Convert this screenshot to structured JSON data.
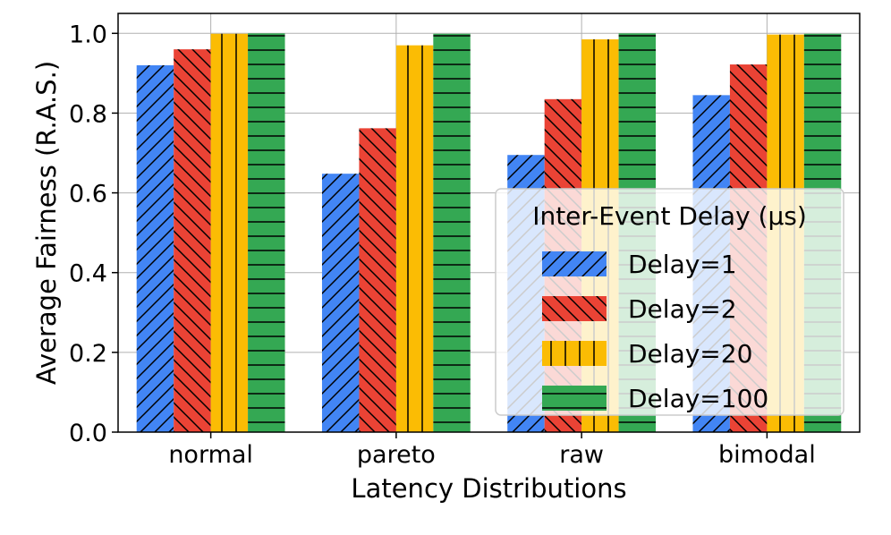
{
  "chart_data": {
    "type": "bar",
    "xlabel": "Latency Distributions",
    "ylabel": "Average Fairness (R.A.S.)",
    "ylim": [
      0,
      1.05
    ],
    "yticks": [
      "0.0",
      "0.2",
      "0.4",
      "0.6",
      "0.8",
      "1.0"
    ],
    "grid": true,
    "categories": [
      "normal",
      "pareto",
      "raw",
      "bimodal"
    ],
    "legend": {
      "title": "Inter-Event Delay (μs)",
      "placement": "lower-right"
    },
    "series": [
      {
        "name": "Delay=1",
        "color": "#4285F4",
        "hatch": "diagonal-forward",
        "values": [
          0.92,
          0.648,
          0.695,
          0.845
        ]
      },
      {
        "name": "Delay=2",
        "color": "#EA4335",
        "hatch": "diagonal-back",
        "values": [
          0.96,
          0.762,
          0.835,
          0.922
        ]
      },
      {
        "name": "Delay=20",
        "color": "#FBBC04",
        "hatch": "vertical",
        "values": [
          0.999,
          0.97,
          0.985,
          0.997
        ]
      },
      {
        "name": "Delay=100",
        "color": "#34A853",
        "hatch": "horizontal",
        "values": [
          1.0,
          0.999,
          1.0,
          0.999
        ]
      }
    ]
  }
}
